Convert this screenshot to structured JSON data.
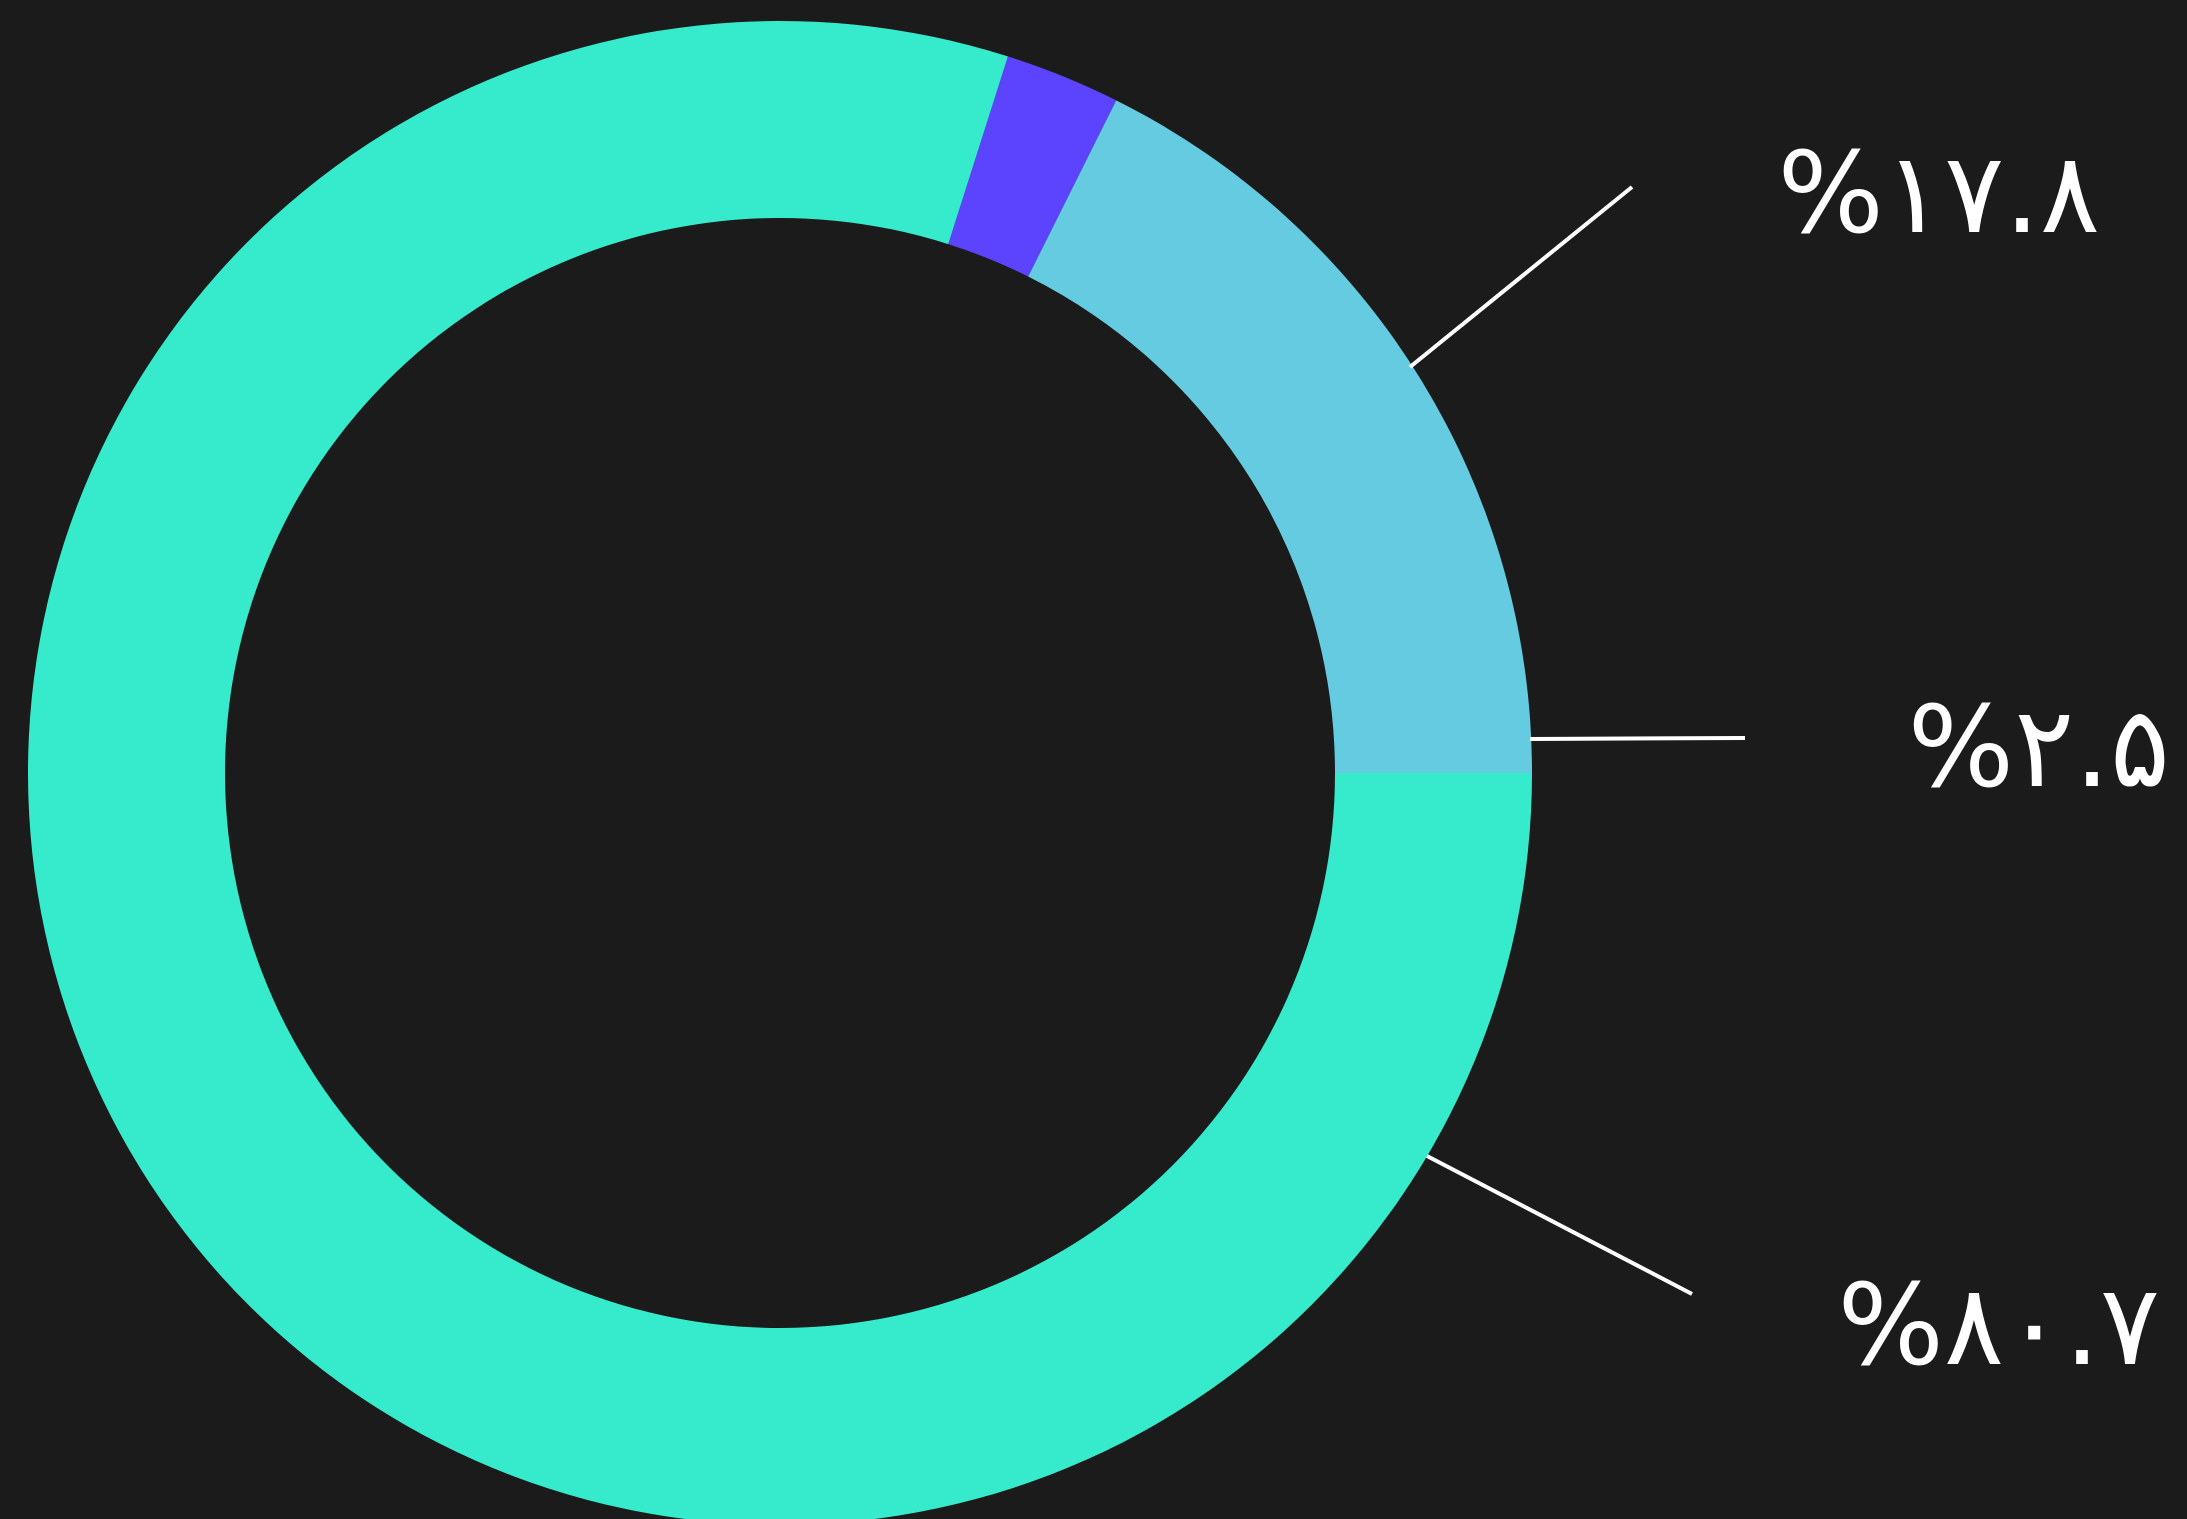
{
  "chart_data": {
    "type": "pie",
    "variant": "donut",
    "title": "",
    "slices": [
      {
        "key": "a",
        "label": "%۱۷.۸",
        "value": 17.8,
        "color": "#65cbe1"
      },
      {
        "key": "b",
        "label": "%۲.۵",
        "value": 2.5,
        "color": "#5c43fd"
      },
      {
        "key": "c",
        "label": "%۸۰.۷",
        "value": 80.7,
        "color": "#36ebcc"
      }
    ],
    "legend": "none",
    "leader_line_color": "#ffffff",
    "background_color": "#1b1b1b"
  }
}
